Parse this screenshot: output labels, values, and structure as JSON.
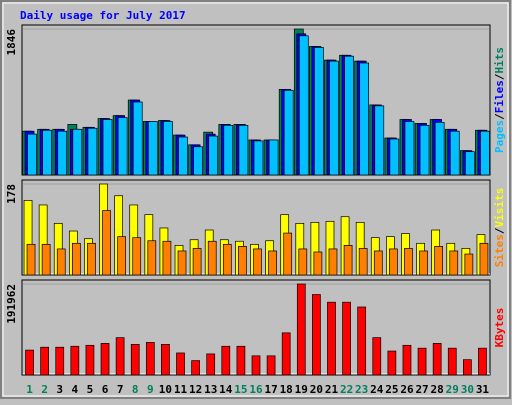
{
  "chart_data": [
    {
      "type": "bar",
      "title": "Daily usage for July 2017",
      "separator": "/",
      "ylim": [
        0,
        1846
      ],
      "yticks": [
        1846
      ],
      "series": [
        {
          "name": "Hits",
          "color": "#00805c",
          "values": [
            554,
            578,
            578,
            640,
            603,
            714,
            751,
            948,
            677,
            689,
            505,
            382,
            542,
            640,
            640,
            443,
            443,
            1083,
            1846,
            1625,
            1453,
            1514,
            1440,
            886,
            468,
            702,
            652,
            702,
            578,
            308,
            566
          ]
        },
        {
          "name": "Files",
          "color": "#0000ff",
          "values": [
            554,
            578,
            578,
            578,
            603,
            714,
            751,
            948,
            677,
            689,
            505,
            382,
            517,
            640,
            640,
            443,
            443,
            1083,
            1785,
            1625,
            1453,
            1514,
            1440,
            886,
            468,
            702,
            652,
            702,
            578,
            308,
            566
          ]
        },
        {
          "name": "Pages",
          "color": "#00c0ff",
          "values": [
            517,
            566,
            554,
            578,
            591,
            702,
            726,
            923,
            677,
            677,
            480,
            357,
            492,
            628,
            628,
            431,
            443,
            1071,
            1760,
            1613,
            1440,
            1502,
            1416,
            874,
            455,
            677,
            628,
            665,
            554,
            295,
            554
          ]
        }
      ]
    },
    {
      "type": "bar",
      "separator": "/",
      "ylim": [
        0,
        178
      ],
      "yticks": [
        178
      ],
      "series": [
        {
          "name": "Visits",
          "color": "#ffff00",
          "values": [
            146,
            137,
            101,
            86,
            71,
            178,
            155,
            137,
            118,
            92,
            58,
            69,
            88,
            69,
            66,
            60,
            67,
            118,
            101,
            103,
            105,
            114,
            103,
            73,
            75,
            81,
            62,
            88,
            62,
            52,
            79
          ]
        },
        {
          "name": "Sites",
          "color": "#ff8000",
          "values": [
            60,
            60,
            51,
            62,
            62,
            126,
            75,
            73,
            67,
            66,
            47,
            52,
            66,
            60,
            56,
            51,
            47,
            82,
            51,
            45,
            51,
            58,
            52,
            47,
            51,
            52,
            47,
            56,
            47,
            41,
            62
          ]
        }
      ]
    },
    {
      "type": "bar",
      "ylim": [
        0,
        191962
      ],
      "yticks": [
        191962
      ],
      "series": [
        {
          "name": "KBytes",
          "color": "#ff0000",
          "values": [
            52538,
            58600,
            58600,
            60621,
            62641,
            66683,
            78807,
            64662,
            68704,
            64662,
            46475,
            30310,
            44455,
            60621,
            60621,
            40414,
            40414,
            88910,
            191962,
            169738,
            153573,
            153573,
            143470,
            78807,
            50518,
            62641,
            56580,
            66683,
            56580,
            32331,
            56580
          ]
        }
      ],
      "categories": [
        "1",
        "2",
        "3",
        "4",
        "5",
        "6",
        "7",
        "8",
        "9",
        "10",
        "11",
        "12",
        "13",
        "14",
        "15",
        "16",
        "17",
        "18",
        "19",
        "20",
        "21",
        "22",
        "23",
        "24",
        "25",
        "26",
        "27",
        "28",
        "29",
        "30",
        "31"
      ],
      "category_colors": [
        "#00805c",
        "#00805c",
        "#000000",
        "#000000",
        "#000000",
        "#000000",
        "#000000",
        "#00805c",
        "#00805c",
        "#000000",
        "#000000",
        "#000000",
        "#000000",
        "#000000",
        "#00805c",
        "#00805c",
        "#000000",
        "#000000",
        "#000000",
        "#000000",
        "#000000",
        "#00805c",
        "#00805c",
        "#000000",
        "#000000",
        "#000000",
        "#000000",
        "#000000",
        "#00805c",
        "#00805c",
        "#000000"
      ]
    }
  ]
}
